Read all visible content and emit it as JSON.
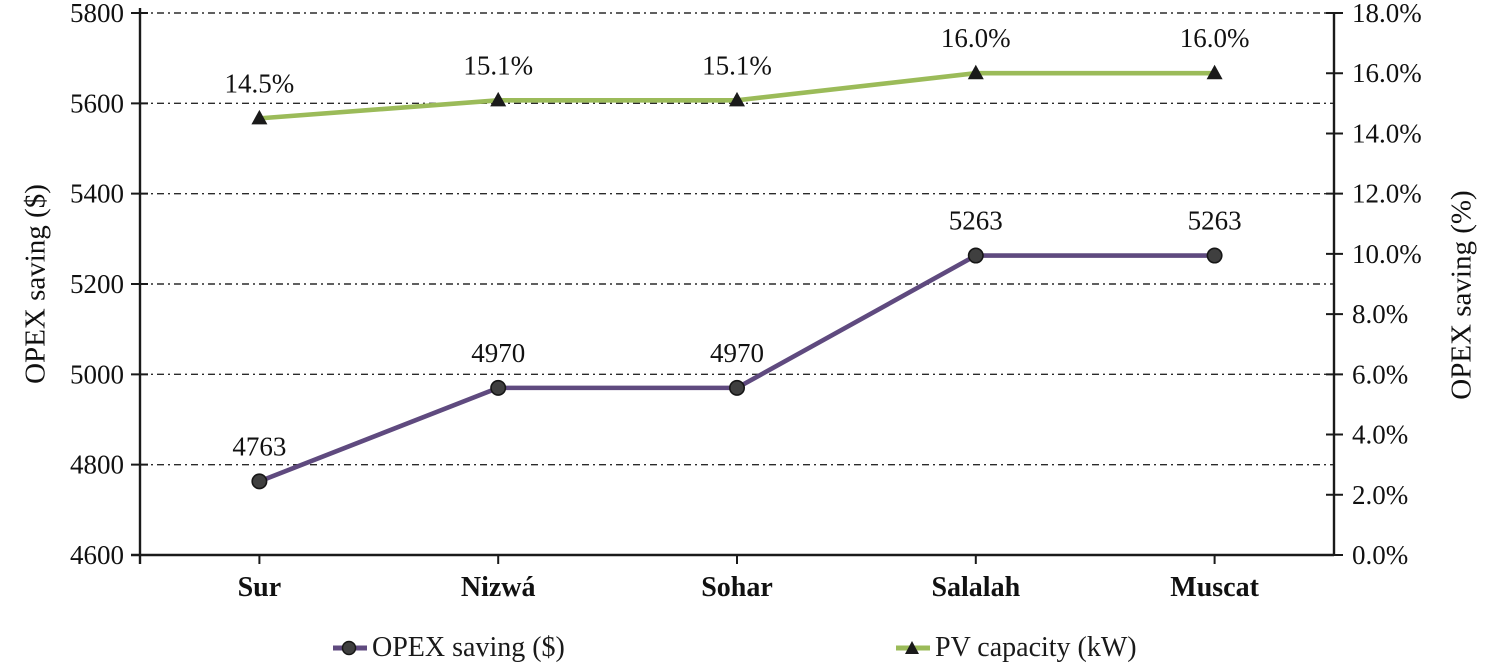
{
  "chart_data": {
    "type": "line",
    "categories": [
      "Sur",
      "Nizwá",
      "Sohar",
      "Salalah",
      "Muscat"
    ],
    "series": [
      {
        "name": "OPEX saving ($)",
        "axis": "left",
        "color": "#5f4a7f",
        "marker": "circle",
        "marker_color": "#3f3f3f",
        "values": [
          4763,
          4970,
          4970,
          5263,
          5263
        ],
        "labels": [
          "4763",
          "4970",
          "4970",
          "5263",
          "5263"
        ]
      },
      {
        "name": "PV capacity (kW)",
        "axis": "right",
        "color": "#9bbb59",
        "marker": "triangle",
        "marker_color": "#1a1a1a",
        "values": [
          14.5,
          15.1,
          15.1,
          16.0,
          16.0
        ],
        "labels": [
          "14.5%",
          "15.1%",
          "15.1%",
          "16.0%",
          "16.0%"
        ]
      }
    ],
    "left_axis": {
      "title": "OPEX saving ($)",
      "min": 4600,
      "max": 5800,
      "step": 200
    },
    "right_axis": {
      "title": "OPEX saving (%)",
      "min": 0,
      "max": 18,
      "step": 2,
      "format": "percent-1dp"
    },
    "grid": "horizontal dash-dot lines at every left-axis tick",
    "legend_position": "bottom"
  },
  "style": {
    "axis_color": "#1a1a1a",
    "grid_color": "#2b2b2b",
    "background": "#ffffff"
  }
}
